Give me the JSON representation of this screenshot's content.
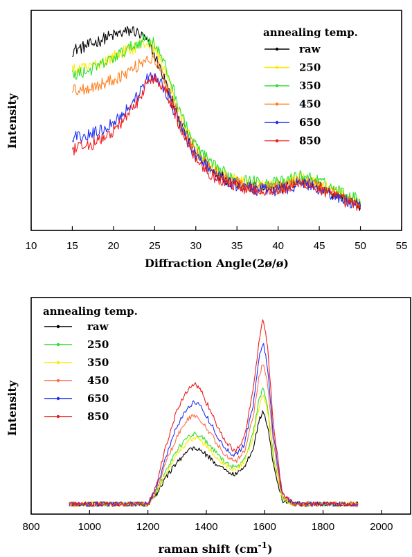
{
  "chart_data": [
    {
      "type": "line",
      "xlabel": "Diffraction Angle(2ø/ø)",
      "ylabel": "Intensity",
      "xlim": [
        10,
        55
      ],
      "xticks": [
        "10",
        "15",
        "20",
        "25",
        "30",
        "35",
        "40",
        "45",
        "50",
        "55"
      ],
      "y_tick_labels": false,
      "legend_title": "annealing temp.",
      "legend_position": "top-right",
      "grid": false,
      "series": [
        {
          "name": "raw",
          "color": "#000000",
          "x": [
            15,
            17,
            19,
            21,
            22.5,
            24,
            25,
            26,
            27,
            28,
            29,
            30,
            32,
            34,
            36,
            38,
            40,
            42,
            43,
            44,
            46,
            48,
            50
          ],
          "y": [
            0.72,
            0.74,
            0.77,
            0.79,
            0.8,
            0.76,
            0.7,
            0.62,
            0.53,
            0.44,
            0.37,
            0.31,
            0.24,
            0.2,
            0.18,
            0.17,
            0.17,
            0.19,
            0.2,
            0.19,
            0.16,
            0.13,
            0.1
          ]
        },
        {
          "name": "250",
          "color": "#ffe800",
          "x": [
            15,
            17,
            19,
            21,
            23,
            24,
            25,
            26,
            27,
            28,
            29,
            30,
            32,
            34,
            36,
            38,
            40,
            42,
            43,
            44,
            46,
            48,
            50
          ],
          "y": [
            0.64,
            0.65,
            0.68,
            0.71,
            0.74,
            0.75,
            0.73,
            0.66,
            0.57,
            0.47,
            0.39,
            0.33,
            0.25,
            0.21,
            0.19,
            0.18,
            0.18,
            0.2,
            0.21,
            0.2,
            0.17,
            0.14,
            0.11
          ]
        },
        {
          "name": "350",
          "color": "#2ee02e",
          "x": [
            15,
            17,
            19,
            21,
            23,
            24,
            25,
            26,
            27,
            28,
            29,
            30,
            32,
            34,
            36,
            38,
            40,
            42,
            43,
            44,
            46,
            48,
            50
          ],
          "y": [
            0.62,
            0.64,
            0.67,
            0.71,
            0.75,
            0.77,
            0.75,
            0.68,
            0.59,
            0.49,
            0.4,
            0.34,
            0.26,
            0.22,
            0.2,
            0.19,
            0.19,
            0.21,
            0.22,
            0.21,
            0.18,
            0.15,
            0.12
          ]
        },
        {
          "name": "450",
          "color": "#ff7f1e",
          "x": [
            15,
            17,
            19,
            21,
            23,
            24,
            25,
            26,
            27,
            28,
            29,
            30,
            32,
            34,
            36,
            38,
            40,
            42,
            43,
            44,
            46,
            48,
            50
          ],
          "y": [
            0.56,
            0.57,
            0.59,
            0.62,
            0.66,
            0.69,
            0.68,
            0.62,
            0.54,
            0.45,
            0.37,
            0.31,
            0.24,
            0.2,
            0.18,
            0.17,
            0.17,
            0.19,
            0.2,
            0.19,
            0.16,
            0.13,
            0.1
          ]
        },
        {
          "name": "650",
          "color": "#1e2ef0",
          "x": [
            15,
            17,
            19,
            21,
            23,
            24,
            25,
            26,
            27,
            28,
            29,
            30,
            32,
            34,
            36,
            38,
            40,
            42,
            43,
            44,
            46,
            48,
            50
          ],
          "y": [
            0.37,
            0.38,
            0.41,
            0.46,
            0.54,
            0.6,
            0.62,
            0.58,
            0.51,
            0.43,
            0.35,
            0.3,
            0.23,
            0.19,
            0.17,
            0.16,
            0.16,
            0.18,
            0.19,
            0.18,
            0.15,
            0.12,
            0.09
          ]
        },
        {
          "name": "850",
          "color": "#ee1c1c",
          "x": [
            15,
            17,
            19,
            21,
            23,
            24,
            25,
            26,
            27,
            28,
            29,
            30,
            32,
            34,
            36,
            38,
            40,
            42,
            43,
            44,
            46,
            48,
            50
          ],
          "y": [
            0.32,
            0.34,
            0.37,
            0.43,
            0.52,
            0.59,
            0.61,
            0.58,
            0.51,
            0.42,
            0.35,
            0.29,
            0.22,
            0.19,
            0.17,
            0.16,
            0.16,
            0.18,
            0.19,
            0.18,
            0.15,
            0.12,
            0.09
          ]
        }
      ]
    },
    {
      "type": "line",
      "xlabel": "raman shift (cm",
      "xlabel_superscript": "-1",
      "xlabel_suffix": ")",
      "ylabel": "Intensity",
      "xlim": [
        800,
        2100
      ],
      "xticks": [
        "800",
        "1000",
        "1200",
        "1400",
        "1600",
        "1800",
        "2000"
      ],
      "y_tick_labels": false,
      "legend_title": "annealing temp.",
      "legend_position": "top-left",
      "grid": false,
      "series": [
        {
          "name": "raw",
          "color": "#000000",
          "x": [
            930,
            1000,
            1100,
            1200,
            1230,
            1260,
            1300,
            1340,
            1360,
            1380,
            1420,
            1460,
            1500,
            1530,
            1560,
            1580,
            1595,
            1610,
            1630,
            1660,
            1700,
            1800,
            1920
          ],
          "y": [
            0.05,
            0.05,
            0.05,
            0.05,
            0.1,
            0.18,
            0.26,
            0.32,
            0.33,
            0.32,
            0.27,
            0.22,
            0.2,
            0.23,
            0.33,
            0.46,
            0.52,
            0.44,
            0.24,
            0.07,
            0.05,
            0.05,
            0.05
          ]
        },
        {
          "name": "250",
          "color": "#2ee02e",
          "x": [
            930,
            1000,
            1100,
            1200,
            1230,
            1260,
            1300,
            1340,
            1360,
            1380,
            1420,
            1460,
            1500,
            1530,
            1560,
            1580,
            1595,
            1610,
            1630,
            1660,
            1700,
            1800,
            1920
          ],
          "y": [
            0.05,
            0.05,
            0.05,
            0.05,
            0.11,
            0.21,
            0.32,
            0.39,
            0.4,
            0.39,
            0.33,
            0.26,
            0.23,
            0.27,
            0.4,
            0.56,
            0.63,
            0.54,
            0.29,
            0.08,
            0.05,
            0.05,
            0.05
          ]
        },
        {
          "name": "350",
          "color": "#ffe800",
          "x": [
            930,
            1000,
            1100,
            1200,
            1230,
            1260,
            1300,
            1340,
            1360,
            1380,
            1420,
            1460,
            1500,
            1530,
            1560,
            1580,
            1595,
            1610,
            1630,
            1660,
            1700,
            1800,
            1920
          ],
          "y": [
            0.05,
            0.05,
            0.05,
            0.05,
            0.11,
            0.2,
            0.3,
            0.37,
            0.38,
            0.37,
            0.31,
            0.25,
            0.22,
            0.26,
            0.38,
            0.53,
            0.6,
            0.51,
            0.27,
            0.08,
            0.05,
            0.05,
            0.05
          ]
        },
        {
          "name": "450",
          "color": "#ff6a4a",
          "x": [
            930,
            1000,
            1100,
            1200,
            1230,
            1260,
            1300,
            1340,
            1360,
            1380,
            1420,
            1460,
            1500,
            1530,
            1560,
            1580,
            1595,
            1610,
            1630,
            1660,
            1700,
            1800,
            1920
          ],
          "y": [
            0.05,
            0.05,
            0.05,
            0.05,
            0.12,
            0.25,
            0.39,
            0.48,
            0.49,
            0.47,
            0.39,
            0.3,
            0.26,
            0.31,
            0.48,
            0.68,
            0.76,
            0.65,
            0.35,
            0.09,
            0.05,
            0.05,
            0.05
          ]
        },
        {
          "name": "650",
          "color": "#1e2ef0",
          "x": [
            930,
            1000,
            1100,
            1200,
            1230,
            1260,
            1300,
            1340,
            1360,
            1380,
            1420,
            1460,
            1500,
            1530,
            1560,
            1580,
            1595,
            1610,
            1630,
            1660,
            1700,
            1800,
            1920
          ],
          "y": [
            0.05,
            0.05,
            0.05,
            0.05,
            0.13,
            0.28,
            0.44,
            0.54,
            0.56,
            0.54,
            0.44,
            0.33,
            0.29,
            0.35,
            0.54,
            0.77,
            0.86,
            0.73,
            0.39,
            0.1,
            0.05,
            0.05,
            0.05
          ]
        },
        {
          "name": "850",
          "color": "#ee1c1c",
          "x": [
            930,
            1000,
            1100,
            1200,
            1230,
            1260,
            1300,
            1340,
            1360,
            1380,
            1420,
            1460,
            1500,
            1530,
            1560,
            1580,
            1595,
            1610,
            1630,
            1660,
            1700,
            1800,
            1920
          ],
          "y": [
            0.05,
            0.05,
            0.05,
            0.05,
            0.15,
            0.33,
            0.52,
            0.63,
            0.65,
            0.62,
            0.5,
            0.37,
            0.31,
            0.38,
            0.61,
            0.86,
            0.98,
            0.83,
            0.44,
            0.11,
            0.05,
            0.05,
            0.05
          ]
        }
      ]
    }
  ]
}
